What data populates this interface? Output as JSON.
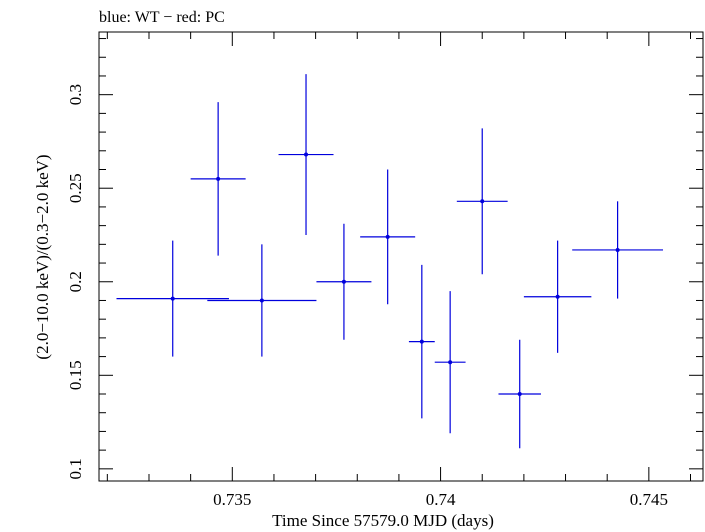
{
  "chart_data": {
    "type": "scatter",
    "title": "blue: WT − red: PC",
    "xlabel": "Time Since 57579.0 MJD (days)",
    "ylabel": "(2.0−10.0 keV)/(0.3−2.0 keV)",
    "xlim": [
      0.7318,
      0.7463
    ],
    "ylim": [
      0.0935,
      0.3335
    ],
    "x_ticks": [
      0.735,
      0.74,
      0.745
    ],
    "x_tick_labels": [
      "0.735",
      "0.74",
      "0.745"
    ],
    "y_ticks": [
      0.1,
      0.15,
      0.2,
      0.25,
      0.3
    ],
    "y_tick_labels": [
      "0.1",
      "0.15",
      "0.2",
      "0.25",
      "0.3"
    ],
    "grid": false,
    "series": [
      {
        "name": "WT",
        "color": "#0000dd",
        "points": [
          {
            "x": 0.73357,
            "xerr": 0.00135,
            "y": 0.191,
            "yerr": 0.031
          },
          {
            "x": 0.73466,
            "xerr": 0.00066,
            "y": 0.255,
            "yerr": 0.041
          },
          {
            "x": 0.73571,
            "xerr": 0.00131,
            "y": 0.19,
            "yerr": 0.03
          },
          {
            "x": 0.73677,
            "xerr": 0.00066,
            "y": 0.268,
            "yerr": 0.043
          },
          {
            "x": 0.73768,
            "xerr": 0.00066,
            "y": 0.2,
            "yerr": 0.031
          },
          {
            "x": 0.73873,
            "xerr": 0.00066,
            "y": 0.224,
            "yerr": 0.036
          },
          {
            "x": 0.73955,
            "xerr": 0.00031,
            "y": 0.168,
            "yerr": 0.041
          },
          {
            "x": 0.74023,
            "xerr": 0.00037,
            "y": 0.157,
            "yerr": 0.038
          },
          {
            "x": 0.741,
            "xerr": 0.00061,
            "y": 0.243,
            "yerr": 0.039
          },
          {
            "x": 0.7419,
            "xerr": 0.00051,
            "y": 0.14,
            "yerr": 0.029
          },
          {
            "x": 0.74281,
            "xerr": 0.00081,
            "y": 0.192,
            "yerr": 0.03
          },
          {
            "x": 0.74425,
            "xerr": 0.00109,
            "y": 0.217,
            "yerr": 0.026
          }
        ]
      }
    ]
  }
}
